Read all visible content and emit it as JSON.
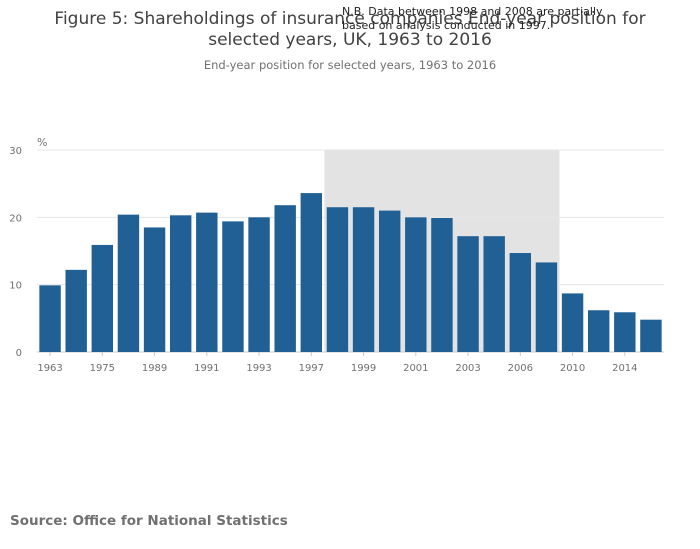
{
  "chart_data": {
    "type": "bar",
    "title": "Figure 5: Shareholdings of insurance companies End-year position for selected years, UK, 1963 to 2016",
    "title_lines": [
      "Figure 5: Shareholdings of insurance companies End-year position for",
      "selected years, UK, 1963 to 2016"
    ],
    "subtitle": "End-year position for selected years, 1963 to 2016",
    "ylabel": "%",
    "xlabel": "",
    "ylim": [
      0,
      30
    ],
    "yticks": [
      0,
      10,
      20,
      30
    ],
    "grid": true,
    "legend": "none",
    "bar_color": "#206095",
    "shade_color": "#e3e3e4",
    "categories": [
      "1963",
      "1969",
      "1975",
      "1981",
      "1989",
      "1990",
      "1991",
      "1992",
      "1993",
      "1994",
      "1997",
      "1998",
      "1999",
      "2000",
      "2001",
      "2002",
      "2003",
      "2004",
      "2006",
      "2008",
      "2010",
      "2012",
      "2014",
      "2016"
    ],
    "x_tick_labels": [
      "1963",
      "1975",
      "1989",
      "1991",
      "1993",
      "1997",
      "1999",
      "2001",
      "2003",
      "2006",
      "2010",
      "2014"
    ],
    "values": [
      9.9,
      12.2,
      15.9,
      20.4,
      18.5,
      20.3,
      20.7,
      19.4,
      20.0,
      21.8,
      23.6,
      21.5,
      21.5,
      21.0,
      20.0,
      19.9,
      17.2,
      17.2,
      14.7,
      13.3,
      8.7,
      6.2,
      5.9,
      4.8
    ],
    "shaded_range": [
      "1998",
      "2008"
    ],
    "annotation_lines": [
      "N.B. Data between 1998 and 2008 are partially",
      "based on analysis conducted in 1997."
    ]
  },
  "source": "Source: Office for National Statistics"
}
